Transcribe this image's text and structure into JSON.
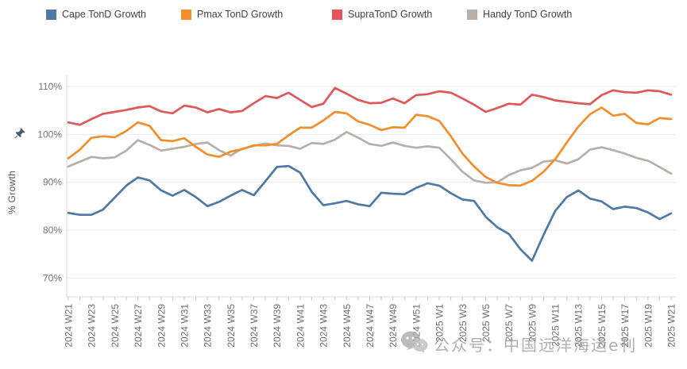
{
  "legend": {
    "items": [
      {
        "label": "Cape TonD Growth",
        "color": "#4E79A7"
      },
      {
        "label": "Pmax TonD Growth",
        "color": "#F28E2B"
      },
      {
        "label": "SupraTonD Growth",
        "color": "#E15759"
      },
      {
        "label": "Handy TonD Growth",
        "color": "#B9AFA9"
      }
    ]
  },
  "y_axis": {
    "title": "% Growth",
    "tick_labels": [
      "110%",
      "100%",
      "90%",
      "80%",
      "70%"
    ],
    "pin_icon": "pushpin-icon",
    "pin_color": "#4e5a68"
  },
  "x_axis": {
    "tick_labels": [
      "2024 W21",
      "2024 W23",
      "2024 W25",
      "2024 W27",
      "2024 W29",
      "2024 W31",
      "2024 W33",
      "2024 W35",
      "2024 W37",
      "2024 W39",
      "2024 W41",
      "2024 W43",
      "2024 W45",
      "2024 W47",
      "2024 W49",
      "2024 W51",
      "2025 W1",
      "2025 W3",
      "2025 W5",
      "2025 W7",
      "2025 W9",
      "2025 W11",
      "2025 W13",
      "2025 W15",
      "2025 W17",
      "2025 W19",
      "2025 W21"
    ]
  },
  "watermark": {
    "logo": "wechat-icon",
    "text": "公众号：中国远洋海运e刊",
    "color": "#9d9d9d"
  },
  "chart_data": {
    "type": "line",
    "title": "",
    "xlabel": "",
    "ylabel": "% Growth",
    "ylim": [
      66,
      112.5
    ],
    "yticks": [
      70,
      80,
      90,
      100,
      110
    ],
    "grid": "horizontal",
    "legend_position": "top",
    "x": [
      "2024 W21",
      "2024 W22",
      "2024 W23",
      "2024 W24",
      "2024 W25",
      "2024 W26",
      "2024 W27",
      "2024 W28",
      "2024 W29",
      "2024 W30",
      "2024 W31",
      "2024 W32",
      "2024 W33",
      "2024 W34",
      "2024 W35",
      "2024 W36",
      "2024 W37",
      "2024 W38",
      "2024 W39",
      "2024 W40",
      "2024 W41",
      "2024 W42",
      "2024 W43",
      "2024 W44",
      "2024 W45",
      "2024 W46",
      "2024 W47",
      "2024 W48",
      "2024 W49",
      "2024 W50",
      "2024 W51",
      "2024 W52",
      "2025 W1",
      "2025 W2",
      "2025 W3",
      "2025 W4",
      "2025 W5",
      "2025 W6",
      "2025 W7",
      "2025 W8",
      "2025 W9",
      "2025 W10",
      "2025 W11",
      "2025 W12",
      "2025 W13",
      "2025 W14",
      "2025 W15",
      "2025 W16",
      "2025 W17",
      "2025 W18",
      "2025 W19",
      "2025 W20",
      "2025 W21"
    ],
    "series": [
      {
        "name": "Handy TonD Growth",
        "color": "#B9AFA9",
        "values": [
          93.3,
          94.3,
          95.3,
          95.0,
          95.2,
          96.6,
          98.8,
          97.8,
          96.6,
          97.0,
          97.4,
          98.0,
          98.3,
          96.7,
          95.6,
          97.0,
          97.6,
          98.1,
          97.7,
          97.6,
          97.0,
          98.2,
          98.0,
          98.9,
          100.5,
          99.3,
          98.0,
          97.6,
          98.3,
          97.6,
          97.2,
          97.5,
          97.2,
          94.8,
          92.2,
          90.4,
          89.9,
          90.0,
          91.5,
          92.5,
          93.0,
          94.3,
          94.6,
          93.9,
          94.8,
          96.8,
          97.3,
          96.7,
          96.0,
          95.1,
          94.5,
          93.2,
          91.8
        ]
      },
      {
        "name": "Pmax TonD Growth",
        "color": "#F28E2B",
        "values": [
          95.0,
          96.8,
          99.3,
          99.6,
          99.4,
          100.7,
          102.5,
          101.8,
          98.8,
          98.6,
          99.2,
          97.4,
          95.8,
          95.3,
          96.4,
          96.9,
          97.7,
          97.7,
          98.0,
          99.8,
          101.4,
          101.4,
          102.9,
          104.7,
          104.4,
          102.7,
          102.0,
          100.9,
          101.5,
          101.4,
          104.1,
          103.8,
          102.8,
          99.6,
          96.0,
          93.3,
          91.1,
          89.9,
          89.4,
          89.3,
          90.3,
          92.2,
          94.8,
          98.3,
          101.6,
          104.2,
          105.6,
          103.9,
          104.3,
          102.4,
          102.1,
          103.4,
          103.2
        ]
      },
      {
        "name": "Cape TonD Growth",
        "color": "#4E79A7",
        "values": [
          83.6,
          83.2,
          83.2,
          84.3,
          86.8,
          89.3,
          91.0,
          90.4,
          88.3,
          87.2,
          88.4,
          86.9,
          85.0,
          85.9,
          87.2,
          88.4,
          87.3,
          90.2,
          93.2,
          93.4,
          92.0,
          88.0,
          85.2,
          85.6,
          86.1,
          85.4,
          85.0,
          87.8,
          87.6,
          87.5,
          88.8,
          89.8,
          89.3,
          87.7,
          86.4,
          86.1,
          82.8,
          80.6,
          79.2,
          76.0,
          73.6,
          79.0,
          84.0,
          86.9,
          88.3,
          86.6,
          86.0,
          84.4,
          84.9,
          84.6,
          83.7,
          82.3,
          83.5
        ]
      },
      {
        "name": "SupraTonD Growth",
        "color": "#E15759",
        "values": [
          102.5,
          102.0,
          103.2,
          104.3,
          104.7,
          105.1,
          105.6,
          105.9,
          104.8,
          104.4,
          106.0,
          105.6,
          104.6,
          105.3,
          104.6,
          104.9,
          106.5,
          108.0,
          107.6,
          108.7,
          107.2,
          105.7,
          106.4,
          109.7,
          108.5,
          107.2,
          106.5,
          106.6,
          107.5,
          106.5,
          108.2,
          108.4,
          109.0,
          108.7,
          107.5,
          106.2,
          104.7,
          105.5,
          106.4,
          106.2,
          108.3,
          107.8,
          107.1,
          106.8,
          106.5,
          106.3,
          108.2,
          109.2,
          108.8,
          108.7,
          109.2,
          109.0,
          108.3
        ]
      }
    ]
  }
}
